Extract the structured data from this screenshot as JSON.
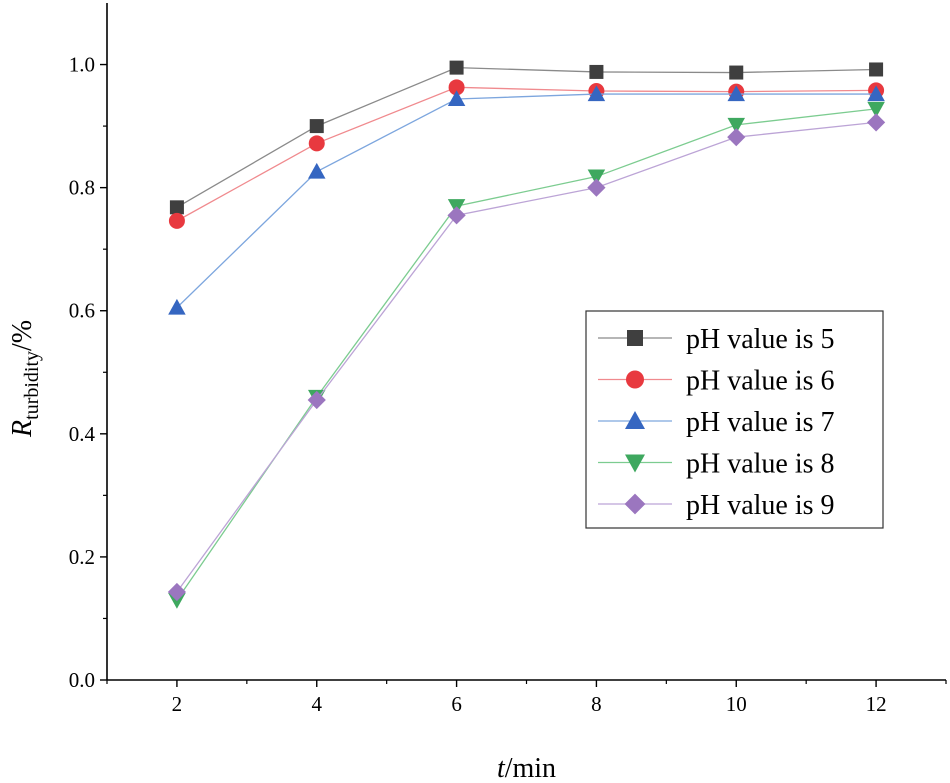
{
  "chart_data": {
    "type": "line",
    "title": "",
    "x": [
      2,
      4,
      6,
      8,
      10,
      12
    ],
    "x_ticks": [
      "2",
      "4",
      "6",
      "8",
      "10",
      "12"
    ],
    "y_ticks": [
      "0.0",
      "0.2",
      "0.4",
      "0.6",
      "0.8",
      "1.0"
    ],
    "xlim": [
      1,
      13
    ],
    "ylim": [
      0,
      1.1
    ],
    "xlabel": {
      "italic": "t",
      "rest": "/min"
    },
    "ylabel": {
      "italic": "R",
      "sub": "turbidity",
      "rest": "/%"
    },
    "grid": false,
    "legend_position": "right",
    "series": [
      {
        "name": "pH value is 5",
        "marker": "square",
        "color": "#3f3f3f",
        "line_color": "#8a8a8a",
        "values": [
          0.768,
          0.9,
          0.995,
          0.988,
          0.987,
          0.992
        ]
      },
      {
        "name": "pH value is 6",
        "marker": "circle",
        "color": "#e8393f",
        "line_color": "#f08a8e",
        "values": [
          0.746,
          0.872,
          0.963,
          0.957,
          0.956,
          0.958
        ]
      },
      {
        "name": "pH value is 7",
        "marker": "triangle-up",
        "color": "#3566c1",
        "line_color": "#7da6de",
        "values": [
          0.605,
          0.826,
          0.944,
          0.952,
          0.952,
          0.952
        ]
      },
      {
        "name": "pH value is 8",
        "marker": "triangle-down",
        "color": "#3ea85f",
        "line_color": "#7ccc90",
        "values": [
          0.13,
          0.46,
          0.77,
          0.818,
          0.902,
          0.928
        ]
      },
      {
        "name": "pH value is 9",
        "marker": "diamond",
        "color": "#9b76bf",
        "line_color": "#bca4d6",
        "values": [
          0.143,
          0.455,
          0.755,
          0.8,
          0.882,
          0.906
        ]
      }
    ]
  }
}
